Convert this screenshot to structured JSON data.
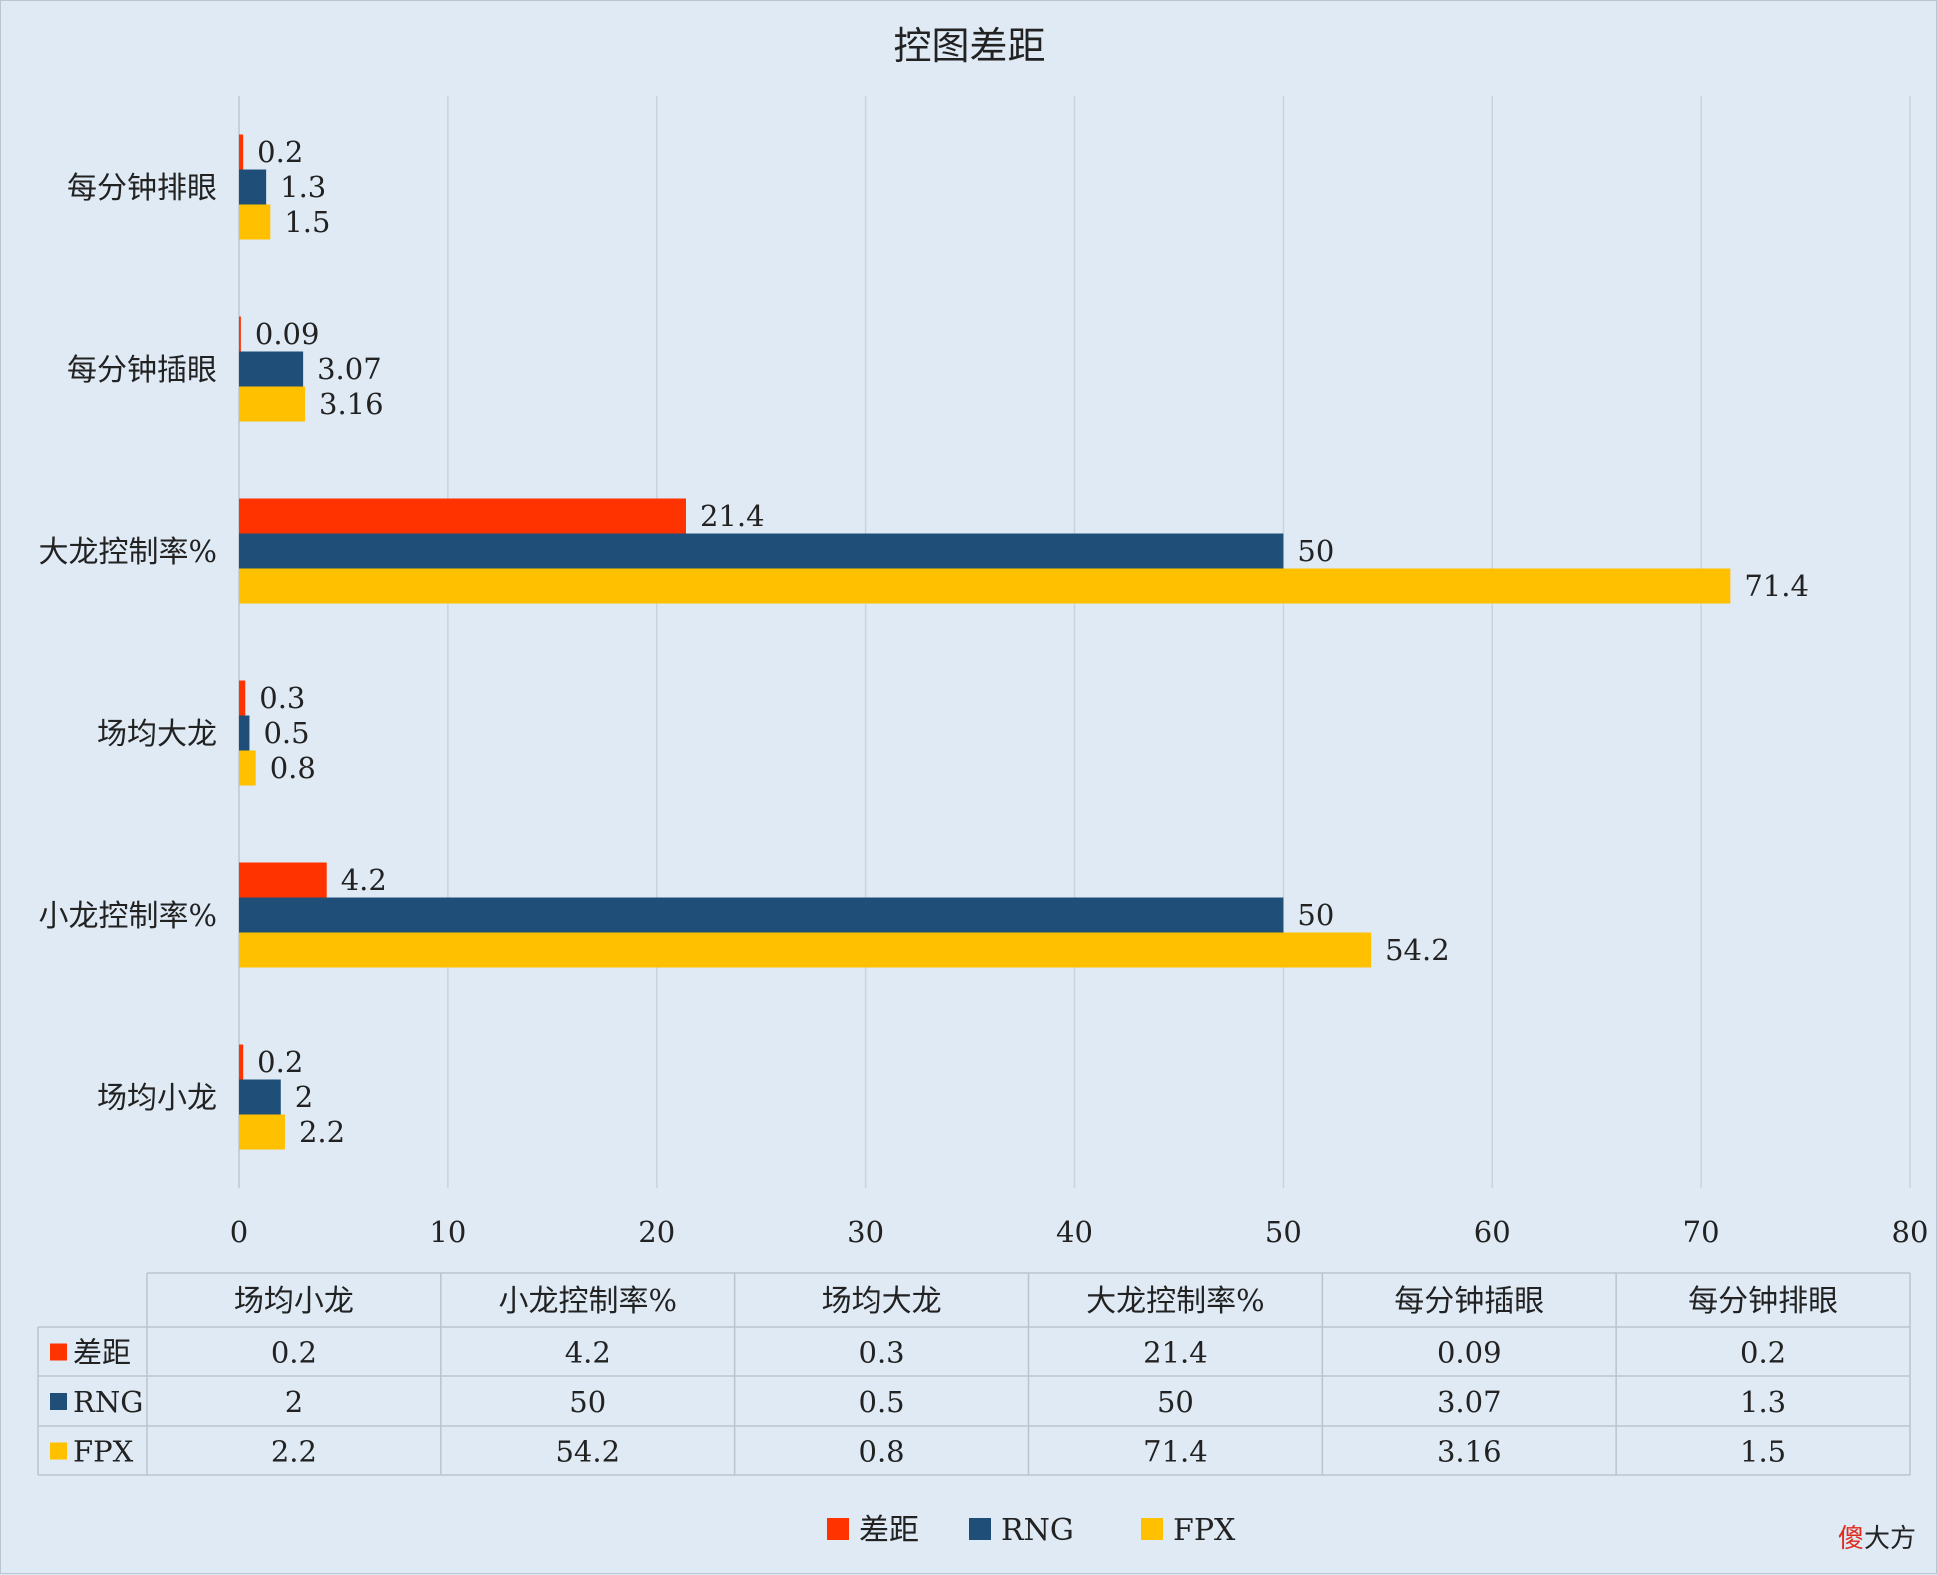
{
  "watermark": {
    "prefix": "傻",
    "suffix": "大方"
  },
  "chart_data": {
    "type": "bar",
    "orientation": "horizontal",
    "title": "控图差距",
    "categories": [
      "场均小龙",
      "小龙控制率%",
      "场均大龙",
      "大龙控制率%",
      "每分钟插眼",
      "每分钟排眼"
    ],
    "series": [
      {
        "name": "差距",
        "color": "#ff3300",
        "values": [
          0.2,
          4.2,
          0.3,
          21.4,
          0.09,
          0.2
        ]
      },
      {
        "name": "RNG",
        "color": "#1f4e79",
        "values": [
          2,
          50,
          0.5,
          50,
          3.07,
          1.3
        ]
      },
      {
        "name": "FPX",
        "color": "#ffc000",
        "values": [
          2.2,
          54.2,
          0.8,
          71.4,
          3.16,
          1.5
        ]
      }
    ],
    "xlim": [
      0,
      80
    ],
    "xticks": [
      0,
      10,
      20,
      30,
      40,
      50,
      60,
      70,
      80
    ],
    "xlabel": "",
    "ylabel": "",
    "grid": "vertical",
    "data_labels": true,
    "data_table": true,
    "legend_position": "bottom"
  }
}
